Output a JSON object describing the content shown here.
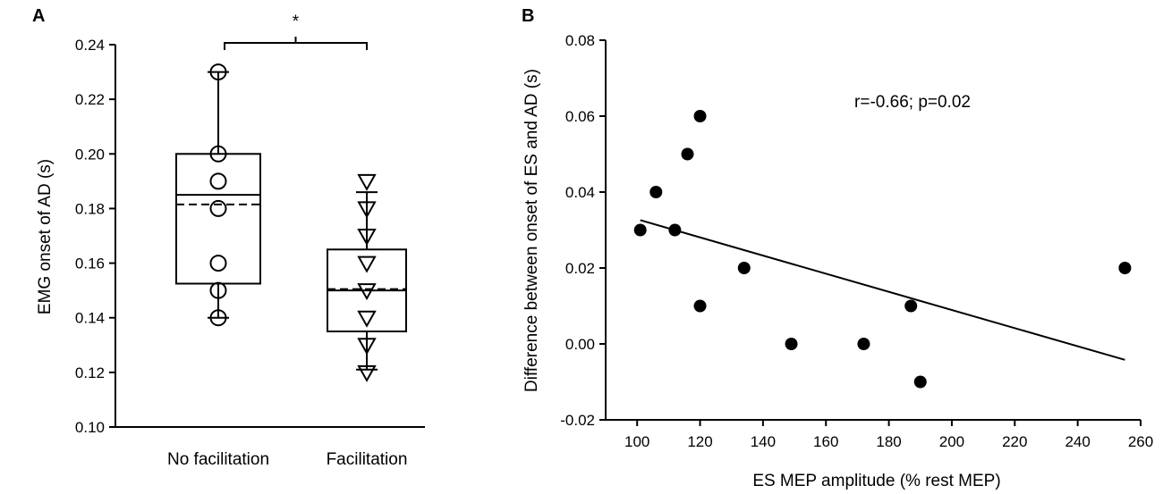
{
  "chart_data": [
    {
      "type": "box",
      "panel_label": "A",
      "ylabel": "EMG onset of AD (s)",
      "ylim": [
        0.1,
        0.24
      ],
      "yticks": [
        "0.10",
        "0.12",
        "0.14",
        "0.16",
        "0.18",
        "0.20",
        "0.22",
        "0.24"
      ],
      "significance": "*",
      "groups": [
        {
          "name": "No facilitation",
          "marker": "circle",
          "points": [
            0.23,
            0.2,
            0.19,
            0.18,
            0.16,
            0.15,
            0.14
          ],
          "q1": 0.1525,
          "median": 0.185,
          "q3": 0.2,
          "mean": 0.1815,
          "whisker_low": 0.14,
          "whisker_high": 0.23
        },
        {
          "name": "Facilitation",
          "marker": "triangle-down",
          "points": [
            0.19,
            0.18,
            0.17,
            0.16,
            0.15,
            0.14,
            0.13,
            0.12
          ],
          "q1": 0.135,
          "median": 0.15,
          "q3": 0.165,
          "mean": 0.1505,
          "whisker_low": 0.121,
          "whisker_high": 0.186
        }
      ]
    },
    {
      "type": "scatter",
      "panel_label": "B",
      "xlabel": "ES MEP amplitude (% rest MEP)",
      "ylabel": "Difference between onset of ES and AD (s)",
      "xlim": [
        90,
        260
      ],
      "ylim": [
        -0.02,
        0.08
      ],
      "xticks": [
        "100",
        "120",
        "140",
        "160",
        "180",
        "200",
        "220",
        "240",
        "260"
      ],
      "yticks": [
        "-0.02",
        "0.00",
        "0.02",
        "0.04",
        "0.06",
        "0.08"
      ],
      "annotation": "r=-0.66; p=0.02",
      "points": [
        {
          "x": 101,
          "y": 0.03
        },
        {
          "x": 106,
          "y": 0.04
        },
        {
          "x": 112,
          "y": 0.03
        },
        {
          "x": 116,
          "y": 0.05
        },
        {
          "x": 120,
          "y": 0.06
        },
        {
          "x": 120,
          "y": 0.01
        },
        {
          "x": 134,
          "y": 0.02
        },
        {
          "x": 149,
          "y": 0.0
        },
        {
          "x": 172,
          "y": 0.0
        },
        {
          "x": 187,
          "y": 0.01
        },
        {
          "x": 190,
          "y": -0.01
        },
        {
          "x": 255,
          "y": 0.02
        }
      ],
      "regression": {
        "x1": 101,
        "y1": 0.0326,
        "x2": 255,
        "y2": -0.0042
      }
    }
  ]
}
